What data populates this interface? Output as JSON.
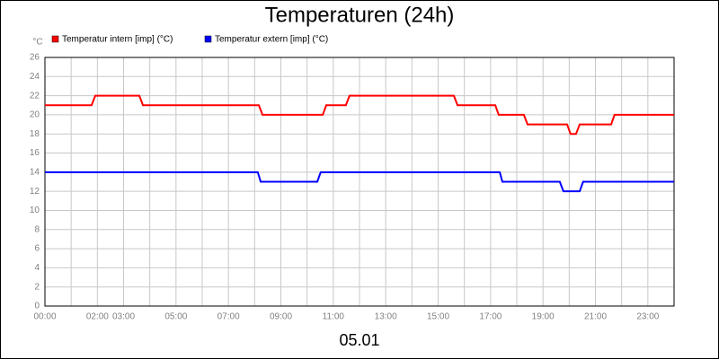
{
  "chart_data": {
    "type": "line",
    "title": "Temperaturen (24h)",
    "y_unit": "°C",
    "x_label": "05.01",
    "xlim": [
      0,
      24
    ],
    "ylim": [
      0,
      26
    ],
    "yticks": [
      0,
      2,
      4,
      6,
      8,
      10,
      12,
      14,
      16,
      18,
      20,
      22,
      24,
      26
    ],
    "xticks": [
      {
        "value": 0,
        "label": "00:00"
      },
      {
        "value": 1,
        "label": null
      },
      {
        "value": 2,
        "label": "02:00"
      },
      {
        "value": 3,
        "label": "03:00"
      },
      {
        "value": 4,
        "label": null
      },
      {
        "value": 5,
        "label": "05:00"
      },
      {
        "value": 6,
        "label": null
      },
      {
        "value": 7,
        "label": "07:00"
      },
      {
        "value": 8,
        "label": null
      },
      {
        "value": 9,
        "label": "09:00"
      },
      {
        "value": 10,
        "label": null
      },
      {
        "value": 11,
        "label": "11:00"
      },
      {
        "value": 12,
        "label": null
      },
      {
        "value": 13,
        "label": "13:00"
      },
      {
        "value": 14,
        "label": null
      },
      {
        "value": 15,
        "label": "15:00"
      },
      {
        "value": 16,
        "label": null
      },
      {
        "value": 17,
        "label": "17:00"
      },
      {
        "value": 18,
        "label": null
      },
      {
        "value": 19,
        "label": "19:00"
      },
      {
        "value": 20,
        "label": null
      },
      {
        "value": 21,
        "label": "21:00"
      },
      {
        "value": 22,
        "label": null
      },
      {
        "value": 23,
        "label": "23:00"
      }
    ],
    "grid": true,
    "series": [
      {
        "name": "Temperatur intern [imp] (°C)",
        "color": "#ff0000",
        "x": [
          0,
          1.78,
          1.92,
          3.6,
          3.74,
          8.16,
          8.3,
          10.6,
          10.73,
          11.48,
          11.62,
          15.6,
          15.74,
          17.18,
          17.31,
          18.27,
          18.41,
          19.92,
          20.05,
          20.26,
          20.4,
          21.6,
          21.73,
          24
        ],
        "values": [
          21,
          21,
          22,
          22,
          21,
          21,
          20,
          20,
          21,
          21,
          22,
          22,
          21,
          21,
          20,
          20,
          19,
          19,
          18,
          18,
          19,
          19,
          20,
          20
        ]
      },
      {
        "name": "Temperatur extern [imp] (°C)",
        "color": "#0000ff",
        "x": [
          0,
          8.12,
          8.23,
          10.39,
          10.52,
          17.35,
          17.45,
          19.64,
          19.78,
          20.4,
          20.53,
          24
        ],
        "values": [
          14,
          14,
          13,
          13,
          14,
          14,
          13,
          13,
          12,
          12,
          13,
          13
        ]
      }
    ]
  }
}
